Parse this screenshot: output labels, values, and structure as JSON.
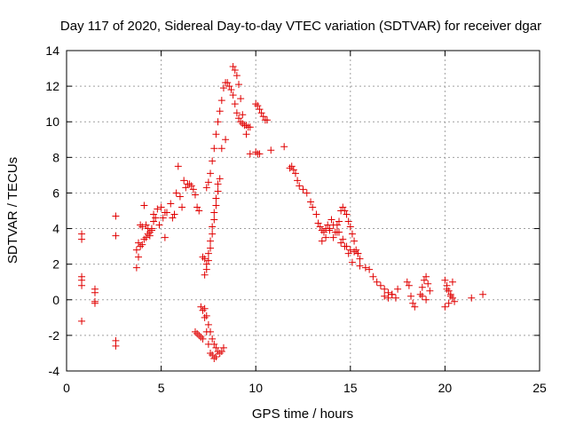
{
  "chart_data": {
    "type": "scatter",
    "title": "Day 117 of 2020, Sidereal Day-to-day VTEC variation (SDTVAR) for receiver dgar",
    "xlabel": "GPS time / hours",
    "ylabel": "SDTVAR / TECUs",
    "xlim": [
      0,
      25
    ],
    "ylim": [
      -4,
      14
    ],
    "xticks": [
      "0",
      "5",
      "10",
      "15",
      "20",
      "25"
    ],
    "yticks": [
      "-4",
      "-2",
      "0",
      "2",
      "4",
      "6",
      "8",
      "10",
      "12",
      "14"
    ],
    "grid": true,
    "marker": "+",
    "marker_color": "#e00000",
    "series": [
      {
        "name": "SDTVAR",
        "x": [
          0.8,
          0.8,
          0.8,
          0.8,
          0.8,
          0.8,
          1.5,
          1.5,
          1.5,
          1.5,
          2.6,
          2.6,
          2.6,
          2.6,
          3.7,
          3.7,
          3.8,
          3.8,
          3.9,
          3.9,
          4.0,
          4.0,
          4.1,
          4.1,
          4.2,
          4.2,
          4.3,
          4.3,
          4.4,
          4.4,
          4.5,
          4.5,
          4.6,
          4.6,
          4.7,
          4.8,
          4.9,
          5.0,
          5.1,
          5.2,
          5.2,
          5.3,
          5.5,
          5.6,
          5.7,
          5.8,
          5.9,
          6.0,
          6.1,
          6.2,
          6.3,
          6.4,
          6.5,
          6.6,
          6.7,
          6.8,
          6.9,
          7.0,
          7.2,
          7.3,
          7.3,
          7.4,
          7.4,
          7.5,
          7.5,
          7.6,
          7.6,
          7.7,
          7.7,
          7.8,
          7.8,
          7.9,
          7.9,
          8.0,
          8.0,
          8.1,
          7.4,
          7.5,
          7.6,
          7.7,
          7.8,
          7.9,
          8.0,
          8.1,
          8.2,
          8.3,
          8.4,
          8.5,
          8.6,
          8.7,
          8.8,
          8.9,
          9.0,
          9.1,
          9.2,
          9.3,
          9.4,
          9.5,
          9.6,
          9.7,
          8.8,
          8.9,
          9.0,
          9.1,
          9.2,
          9.3,
          9.5,
          9.7,
          7.1,
          7.2,
          7.3,
          7.4,
          7.5,
          7.6,
          7.7,
          7.8,
          7.9,
          7.3,
          7.4,
          7.5,
          7.6,
          7.7,
          7.8,
          7.9,
          8.0,
          8.1,
          8.2,
          8.3,
          6.8,
          6.9,
          7.0,
          7.1,
          7.2,
          8.2,
          8.4,
          10.0,
          10.1,
          10.2,
          10.3,
          10.4,
          10.5,
          10.6,
          10.0,
          10.1,
          10.2,
          10.8,
          11.5,
          11.8,
          11.9,
          12.0,
          12.1,
          12.2,
          12.3,
          12.5,
          12.7,
          12.9,
          13.0,
          13.2,
          13.3,
          13.4,
          13.5,
          13.6,
          13.7,
          13.8,
          13.9,
          14.0,
          14.1,
          14.2,
          14.3,
          14.4,
          14.5,
          14.6,
          14.7,
          14.8,
          14.9,
          15.0,
          15.1,
          15.2,
          15.3,
          15.4,
          15.5,
          13.5,
          13.7,
          13.9,
          14.1,
          14.3,
          14.5,
          14.7,
          14.9,
          15.1,
          14.4,
          14.6,
          14.8,
          15.0,
          15.2,
          15.4,
          15.5,
          15.8,
          16.0,
          16.2,
          16.4,
          16.6,
          16.8,
          17.0,
          17.2,
          17.4,
          16.8,
          17.0,
          17.2,
          17.5,
          18.0,
          18.1,
          18.2,
          18.3,
          18.4,
          18.7,
          18.8,
          18.9,
          19.0,
          19.1,
          19.2,
          18.8,
          19.0,
          20.0,
          20.1,
          20.2,
          20.3,
          20.4,
          20.5,
          20.0,
          20.2,
          20.4,
          20.1,
          20.3,
          21.4,
          22.0
        ],
        "y": [
          3.7,
          3.4,
          1.3,
          1.1,
          0.8,
          -1.2,
          0.6,
          0.4,
          -0.1,
          -0.2,
          4.7,
          3.6,
          -2.3,
          -2.6,
          2.8,
          1.8,
          3.2,
          2.4,
          3.0,
          4.2,
          3.1,
          4.1,
          3.4,
          5.3,
          3.5,
          4.2,
          3.7,
          4.0,
          3.8,
          3.6,
          4.0,
          3.9,
          4.8,
          4.4,
          4.6,
          5.1,
          4.2,
          5.2,
          4.6,
          4.9,
          3.5,
          4.9,
          5.4,
          4.6,
          4.8,
          6.0,
          7.5,
          5.8,
          5.2,
          6.7,
          6.3,
          6.5,
          6.5,
          6.4,
          6.2,
          5.9,
          5.2,
          5.0,
          2.4,
          2.3,
          1.4,
          1.7,
          2.0,
          2.2,
          2.6,
          2.9,
          3.3,
          3.7,
          4.1,
          4.5,
          4.9,
          5.3,
          5.7,
          6.1,
          6.5,
          6.8,
          6.3,
          6.6,
          7.1,
          7.8,
          8.5,
          9.3,
          10.0,
          10.6,
          11.2,
          11.9,
          12.2,
          12.2,
          12.0,
          11.8,
          11.5,
          11.0,
          10.5,
          10.2,
          10.0,
          9.9,
          9.8,
          9.8,
          9.7,
          9.7,
          13.1,
          12.9,
          12.6,
          12.1,
          11.3,
          10.4,
          9.3,
          8.2,
          -0.4,
          -0.6,
          -1.0,
          -1.8,
          -2.5,
          -3.0,
          -3.1,
          -3.3,
          -3.2,
          -0.5,
          -0.9,
          -1.4,
          -1.8,
          -2.2,
          -2.5,
          -2.7,
          -2.9,
          -3.0,
          -2.9,
          -2.7,
          -1.8,
          -1.9,
          -2.0,
          -2.1,
          -2.2,
          8.5,
          9.0,
          11.0,
          10.9,
          10.7,
          10.5,
          10.3,
          10.1,
          10.1,
          8.3,
          8.2,
          8.2,
          8.4,
          8.6,
          7.4,
          7.5,
          7.3,
          7.1,
          6.7,
          6.4,
          6.2,
          6.0,
          5.5,
          5.2,
          4.8,
          4.3,
          4.1,
          3.9,
          3.8,
          4.0,
          4.2,
          3.9,
          4.5,
          3.5,
          3.8,
          4.2,
          4.4,
          5.0,
          5.2,
          5.0,
          4.8,
          4.4,
          4.1,
          3.7,
          3.3,
          2.8,
          2.6,
          2.3,
          3.3,
          3.5,
          4.0,
          4.2,
          3.8,
          3.2,
          3.0,
          2.6,
          2.1,
          3.8,
          3.4,
          3.0,
          2.8,
          2.7,
          2.6,
          1.9,
          1.8,
          1.7,
          1.3,
          1.0,
          0.8,
          0.6,
          0.4,
          0.3,
          0.1,
          0.2,
          0.1,
          0.3,
          0.6,
          1.0,
          0.8,
          0.2,
          -0.2,
          -0.4,
          0.3,
          0.7,
          1.1,
          1.3,
          0.9,
          0.5,
          0.2,
          0.0,
          1.1,
          0.8,
          0.5,
          0.3,
          0.1,
          -0.1,
          -0.4,
          -0.2,
          1.0,
          0.6,
          0.2,
          0.1,
          0.3
        ]
      }
    ]
  }
}
